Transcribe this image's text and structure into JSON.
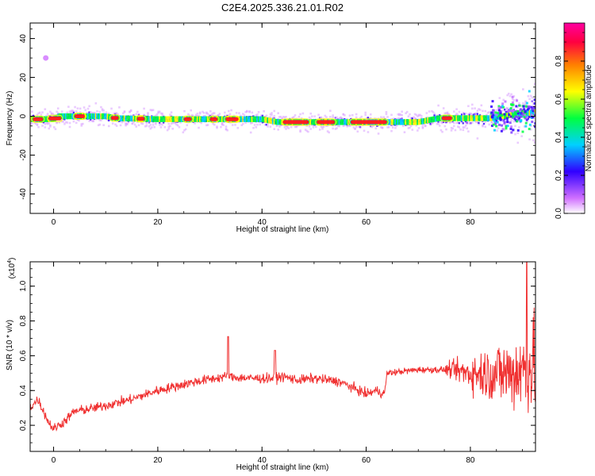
{
  "page": {
    "title": "C2E4.2025.336.21.01.R02"
  },
  "chart_data": [
    {
      "type": "heatmap",
      "title": "C2E4.2025.336.21.01.R02",
      "xlabel": "Height of straight line (km)",
      "ylabel": "Frequency (Hz)",
      "xlim": [
        -4.5,
        92.5
      ],
      "ylim": [
        -50,
        48
      ],
      "x_ticks": [
        0,
        20,
        40,
        60,
        80
      ],
      "y_ticks": [
        -40,
        -20,
        0,
        20,
        40
      ],
      "colorbar": {
        "label": "Normalized spectral amplitude",
        "range": [
          0,
          1
        ],
        "ticks": [
          "0.0",
          "0.2",
          "0.4",
          "0.6",
          "0.8"
        ],
        "colors": [
          "#ffffff",
          "#d070ff",
          "#3000ff",
          "#00d0ff",
          "#00ff40",
          "#ffff00",
          "#ff8000",
          "#ff0040",
          "#ff00a0"
        ]
      },
      "ridge": [
        {
          "x": -4,
          "freq": -1.5
        },
        {
          "x": 0,
          "freq": -1.5
        },
        {
          "x": 1,
          "freq": 0
        },
        {
          "x": 10,
          "freq": 0
        },
        {
          "x": 12,
          "freq": -1
        },
        {
          "x": 20,
          "freq": -1.5
        },
        {
          "x": 40,
          "freq": -1.5
        },
        {
          "x": 43,
          "freq": -3
        },
        {
          "x": 70,
          "freq": -3
        },
        {
          "x": 74,
          "freq": -1
        },
        {
          "x": 84,
          "freq": -1
        },
        {
          "x": 86,
          "freq": 0
        },
        {
          "x": 92,
          "freq": 2
        }
      ],
      "outlier": {
        "x": -1.5,
        "freq": 30
      }
    },
    {
      "type": "line",
      "xlabel": "Height of straight line (km)",
      "ylabel": "SNR (10 * v/v)",
      "y_multiplier": "(x10",
      "y_multiplier_exp": "4",
      "xlim": [
        -4.5,
        92.5
      ],
      "ylim": [
        0.05,
        1.14
      ],
      "x_ticks": [
        0,
        20,
        40,
        60,
        80
      ],
      "y_ticks": [
        0.2,
        0.4,
        0.6,
        0.8,
        1.0
      ],
      "series": [
        {
          "color": "#f03030",
          "trend": [
            [
              -4.5,
              0.3
            ],
            [
              -3,
              0.35
            ],
            [
              -1,
              0.22
            ],
            [
              0,
              0.18
            ],
            [
              2,
              0.22
            ],
            [
              4,
              0.28
            ],
            [
              8,
              0.3
            ],
            [
              15,
              0.35
            ],
            [
              20,
              0.4
            ],
            [
              27,
              0.45
            ],
            [
              33,
              0.48
            ],
            [
              38,
              0.47
            ],
            [
              42,
              0.47
            ],
            [
              44,
              0.48
            ],
            [
              47,
              0.46
            ],
            [
              50,
              0.47
            ],
            [
              55,
              0.45
            ],
            [
              60,
              0.38
            ],
            [
              62,
              0.4
            ],
            [
              63.5,
              0.38
            ],
            [
              64,
              0.5
            ],
            [
              70,
              0.52
            ],
            [
              76,
              0.52
            ],
            [
              80,
              0.5
            ],
            [
              85,
              0.5
            ],
            [
              88,
              0.5
            ],
            [
              92.5,
              0.55
            ]
          ]
        }
      ]
    }
  ]
}
